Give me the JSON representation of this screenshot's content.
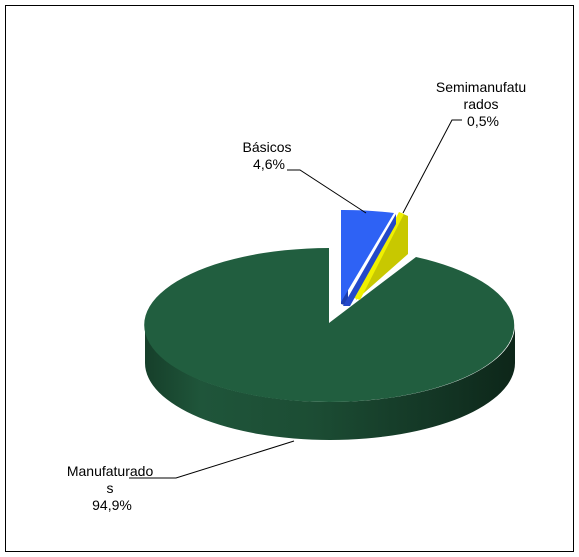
{
  "chart_data": {
    "type": "pie",
    "style": "3d-exploded",
    "slices": [
      {
        "name": "Básicos",
        "label_lines": [
          "Básicos",
          "4,6%"
        ],
        "value": 4.6,
        "color": "#2a5cf0"
      },
      {
        "name": "Semimanufaturados",
        "label_lines": [
          "Semimanufatu",
          "rados",
          "0,5%"
        ],
        "value": 0.5,
        "color": "#e6e600"
      },
      {
        "name": "Manufaturados",
        "label_lines": [
          "Manufaturado",
          "s",
          "94,9%"
        ],
        "value": 94.9,
        "color": "#215e3f"
      }
    ],
    "legend": "none"
  }
}
